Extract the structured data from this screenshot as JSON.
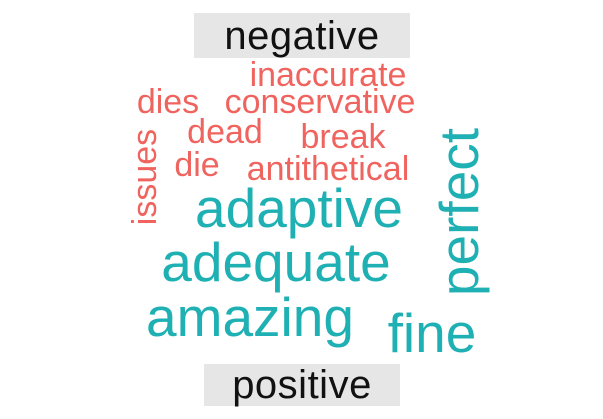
{
  "chart_data": {
    "type": "wordcloud",
    "groups": [
      {
        "name": "negative",
        "color": "#f0645f"
      },
      {
        "name": "positive",
        "color": "#1fb0b4"
      }
    ],
    "words": [
      {
        "text": "inaccurate",
        "group": "negative",
        "weight": 2
      },
      {
        "text": "dies",
        "group": "negative",
        "weight": 2
      },
      {
        "text": "conservative",
        "group": "negative",
        "weight": 2
      },
      {
        "text": "dead",
        "group": "negative",
        "weight": 2
      },
      {
        "text": "break",
        "group": "negative",
        "weight": 2
      },
      {
        "text": "issues",
        "group": "negative",
        "weight": 2
      },
      {
        "text": "die",
        "group": "negative",
        "weight": 2
      },
      {
        "text": "antithetical",
        "group": "negative",
        "weight": 2
      },
      {
        "text": "adaptive",
        "group": "positive",
        "weight": 4
      },
      {
        "text": "perfect",
        "group": "positive",
        "weight": 4
      },
      {
        "text": "adequate",
        "group": "positive",
        "weight": 4
      },
      {
        "text": "amazing",
        "group": "positive",
        "weight": 4
      },
      {
        "text": "fine",
        "group": "positive",
        "weight": 4
      }
    ]
  }
}
